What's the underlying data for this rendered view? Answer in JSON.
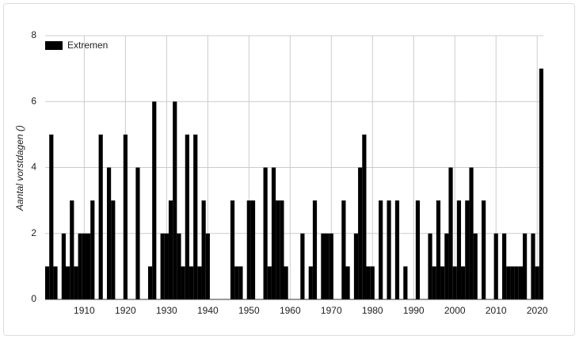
{
  "chart_data": {
    "type": "bar",
    "y_label": "Aantal vorstdagen ()",
    "series": [
      {
        "name": "Extremen",
        "color": "#000000"
      }
    ],
    "x": [
      1901,
      1902,
      1903,
      1904,
      1905,
      1906,
      1907,
      1908,
      1909,
      1910,
      1911,
      1912,
      1913,
      1914,
      1915,
      1916,
      1917,
      1918,
      1919,
      1920,
      1921,
      1922,
      1923,
      1924,
      1925,
      1926,
      1927,
      1928,
      1929,
      1930,
      1931,
      1932,
      1933,
      1934,
      1935,
      1936,
      1937,
      1938,
      1939,
      1940,
      1941,
      1942,
      1943,
      1944,
      1945,
      1946,
      1947,
      1948,
      1949,
      1950,
      1951,
      1952,
      1953,
      1954,
      1955,
      1956,
      1957,
      1958,
      1959,
      1960,
      1961,
      1962,
      1963,
      1964,
      1965,
      1966,
      1967,
      1968,
      1969,
      1970,
      1971,
      1972,
      1973,
      1974,
      1975,
      1976,
      1977,
      1978,
      1979,
      1980,
      1981,
      1982,
      1983,
      1984,
      1985,
      1986,
      1987,
      1988,
      1989,
      1990,
      1991,
      1992,
      1993,
      1994,
      1995,
      1996,
      1997,
      1998,
      1999,
      2000,
      2001,
      2002,
      2003,
      2004,
      2005,
      2006,
      2007,
      2008,
      2009,
      2010,
      2011,
      2012,
      2013,
      2014,
      2015,
      2016,
      2017,
      2018,
      2019,
      2020,
      2021
    ],
    "values": [
      1,
      5,
      1,
      0,
      2,
      1,
      3,
      1,
      2,
      2,
      2,
      3,
      0,
      5,
      0,
      4,
      3,
      0,
      0,
      5,
      0,
      0,
      4,
      0,
      0,
      1,
      6,
      0,
      2,
      2,
      3,
      6,
      2,
      1,
      5,
      1,
      5,
      1,
      3,
      2,
      0,
      0,
      0,
      0,
      0,
      3,
      1,
      1,
      0,
      3,
      3,
      0,
      0,
      4,
      1,
      4,
      3,
      3,
      1,
      0,
      0,
      0,
      2,
      0,
      1,
      3,
      0,
      2,
      2,
      2,
      0,
      0,
      3,
      1,
      0,
      2,
      4,
      5,
      1,
      1,
      0,
      3,
      0,
      3,
      0,
      3,
      0,
      1,
      0,
      0,
      3,
      0,
      0,
      2,
      1,
      3,
      1,
      2,
      4,
      1,
      3,
      1,
      3,
      4,
      2,
      0,
      3,
      0,
      0,
      2,
      0,
      2,
      1,
      1,
      1,
      1,
      2,
      0,
      2,
      1,
      7
    ],
    "xlim": [
      1900.5,
      2021.5
    ],
    "xticks": [
      1910,
      1920,
      1930,
      1940,
      1950,
      1960,
      1970,
      1980,
      1990,
      2000,
      2010,
      2020
    ],
    "ylim": [
      0,
      8
    ],
    "yticks": [
      0,
      2,
      4,
      6,
      8
    ],
    "grid": true,
    "legend": "top-left"
  }
}
